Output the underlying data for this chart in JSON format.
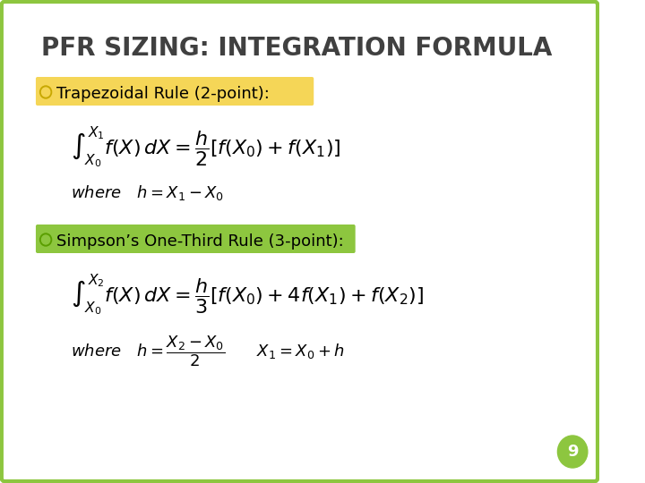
{
  "title": "PFR SIZING: INTEGRATION FORMULA",
  "title_fontsize": 20,
  "title_color": "#404040",
  "background_color": "#ffffff",
  "border_color": "#8dc63f",
  "bullet1_text": "Trapezoidal Rule (2-point):",
  "bullet1_bg": "#f5d657",
  "bullet2_text": "Simpson’s One-Third Rule (3-point):",
  "bullet2_bg": "#8dc63f",
  "bullet_text_color": "#000000",
  "bullet_fontsize": 13,
  "formula1": "$\\int_{X_0}^{X_1} f(X)\\,dX = \\dfrac{h}{2}\\left[f(X_0)+f(X_1)\\right]$",
  "where1": "$where \\quad h = X_1 - X_0$",
  "formula2": "$\\int_{X_0}^{X_2} f(X)\\,dX = \\dfrac{h}{3}\\left[f(X_0)+4f(X_1)+f(X_2)\\right]$",
  "where2": "$where \\quad h = \\dfrac{X_2 - X_0}{2} \\qquad X_1 = X_0 + h$",
  "formula_fontsize": 14,
  "where_fontsize": 12,
  "page_number": "9",
  "page_circle_color": "#8dc63f",
  "page_text_color": "#ffffff"
}
